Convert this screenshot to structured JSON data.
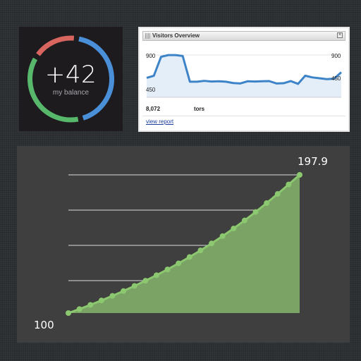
{
  "balance": {
    "amount": "+42",
    "caption": "my balance",
    "ring": [
      {
        "color": "#4a90d9",
        "fraction": 0.42
      },
      {
        "color": "#57b86c",
        "fraction": 0.36
      },
      {
        "color": "#d9655f",
        "fraction": 0.16
      }
    ]
  },
  "visitors": {
    "title": "Visitors Overview",
    "close_glyph": "×",
    "tick_high": "900",
    "tick_mid": "450",
    "tick_high_right": "900",
    "tick_mid_right": "450",
    "stat_value": "8,072",
    "stat_label": "tors",
    "link": "view report"
  },
  "chart_data": [
    {
      "type": "line",
      "title": "Visitors Overview",
      "ylim": [
        0,
        1000
      ],
      "color": "#3d83c7",
      "values": [
        420,
        470,
        910,
        950,
        950,
        930,
        330,
        330,
        350,
        335,
        340,
        330,
        300,
        290,
        340,
        335,
        340,
        345,
        290,
        295,
        345,
        280,
        470,
        430,
        410,
        390,
        400,
        550
      ]
    },
    {
      "type": "area",
      "color": "#8cc86f",
      "ylim": [
        100,
        197.9
      ],
      "start_label": "100",
      "end_label": "197.9",
      "values": [
        100,
        102.8,
        105.8,
        108.9,
        112.2,
        115.6,
        119.2,
        122.9,
        126.8,
        130.9,
        135.2,
        139.7,
        144.4,
        149.3,
        154.5,
        159.9,
        165.6,
        171.6,
        177.9,
        184.4,
        191.1,
        197.9
      ]
    }
  ]
}
